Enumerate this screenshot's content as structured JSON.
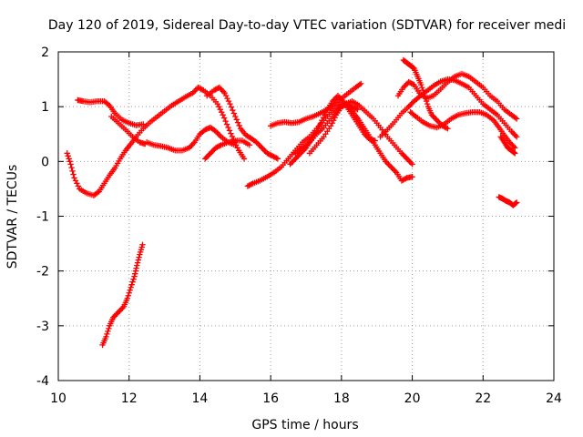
{
  "chart_data": {
    "type": "scatter",
    "title": "Day 120 of 2019, Sidereal Day-to-day VTEC variation (SDTVAR) for receiver medi",
    "xlabel": "GPS time / hours",
    "ylabel": "SDTVAR / TECUs",
    "xlim": [
      10,
      24
    ],
    "ylim": [
      -4,
      2
    ],
    "xticks": [
      10,
      12,
      14,
      16,
      18,
      20,
      22,
      24
    ],
    "yticks": [
      -4,
      -3,
      -2,
      -1,
      0,
      1,
      2
    ],
    "grid": true,
    "marker": "plus",
    "color": "#ff0000",
    "series": [
      {
        "name": "arc-1",
        "points": [
          [
            10.25,
            0.15
          ],
          [
            10.35,
            -0.05
          ],
          [
            10.45,
            -0.3
          ],
          [
            10.6,
            -0.5
          ],
          [
            10.8,
            -0.58
          ],
          [
            11.0,
            -0.62
          ],
          [
            11.15,
            -0.55
          ],
          [
            11.3,
            -0.4
          ],
          [
            11.45,
            -0.25
          ],
          [
            11.6,
            -0.12
          ],
          [
            11.75,
            0.05
          ],
          [
            11.9,
            0.2
          ],
          [
            12.05,
            0.32
          ],
          [
            12.2,
            0.45
          ],
          [
            12.4,
            0.6
          ],
          [
            12.6,
            0.72
          ],
          [
            12.8,
            0.82
          ],
          [
            13.0,
            0.92
          ],
          [
            13.2,
            1.02
          ],
          [
            13.4,
            1.1
          ],
          [
            13.6,
            1.18
          ],
          [
            13.8,
            1.25
          ],
          [
            13.95,
            1.35
          ],
          [
            14.1,
            1.3
          ],
          [
            14.3,
            1.2
          ],
          [
            14.5,
            1.05
          ],
          [
            14.65,
            0.85
          ],
          [
            14.8,
            0.62
          ],
          [
            14.95,
            0.4
          ],
          [
            15.1,
            0.2
          ],
          [
            15.25,
            0.05
          ]
        ]
      },
      {
        "name": "arc-2",
        "points": [
          [
            10.55,
            1.12
          ],
          [
            10.7,
            1.1
          ],
          [
            10.9,
            1.08
          ],
          [
            11.1,
            1.1
          ],
          [
            11.3,
            1.1
          ],
          [
            11.45,
            1.02
          ],
          [
            11.6,
            0.88
          ],
          [
            11.8,
            0.76
          ],
          [
            12.0,
            0.7
          ],
          [
            12.2,
            0.66
          ],
          [
            12.4,
            0.68
          ]
        ]
      },
      {
        "name": "arc-3",
        "points": [
          [
            11.5,
            0.82
          ],
          [
            11.7,
            0.7
          ],
          [
            11.9,
            0.58
          ],
          [
            12.1,
            0.45
          ],
          [
            12.3,
            0.35
          ],
          [
            12.45,
            0.32
          ]
        ]
      },
      {
        "name": "arc-4",
        "points": [
          [
            11.25,
            -3.35
          ],
          [
            11.35,
            -3.2
          ],
          [
            11.45,
            -3.0
          ],
          [
            11.55,
            -2.85
          ],
          [
            11.7,
            -2.75
          ],
          [
            11.85,
            -2.65
          ],
          [
            11.95,
            -2.5
          ],
          [
            12.05,
            -2.3
          ],
          [
            12.15,
            -2.1
          ],
          [
            12.22,
            -1.9
          ],
          [
            12.3,
            -1.7
          ],
          [
            12.38,
            -1.52
          ]
        ]
      },
      {
        "name": "arc-5",
        "points": [
          [
            12.5,
            0.35
          ],
          [
            12.7,
            0.3
          ],
          [
            12.9,
            0.28
          ],
          [
            13.1,
            0.25
          ],
          [
            13.3,
            0.2
          ],
          [
            13.5,
            0.2
          ],
          [
            13.7,
            0.25
          ],
          [
            13.85,
            0.35
          ],
          [
            14.0,
            0.5
          ],
          [
            14.15,
            0.58
          ],
          [
            14.3,
            0.62
          ],
          [
            14.45,
            0.55
          ],
          [
            14.6,
            0.45
          ],
          [
            14.8,
            0.35
          ],
          [
            15.0,
            0.3
          ]
        ]
      },
      {
        "name": "arc-6",
        "points": [
          [
            14.2,
            1.2
          ],
          [
            14.4,
            1.3
          ],
          [
            14.55,
            1.35
          ],
          [
            14.7,
            1.25
          ],
          [
            14.85,
            1.05
          ],
          [
            15.0,
            0.82
          ],
          [
            15.15,
            0.6
          ],
          [
            15.3,
            0.48
          ],
          [
            15.45,
            0.42
          ],
          [
            15.6,
            0.35
          ],
          [
            15.75,
            0.25
          ],
          [
            15.9,
            0.15
          ],
          [
            16.05,
            0.1
          ],
          [
            16.2,
            0.05
          ]
        ]
      },
      {
        "name": "arc-7",
        "points": [
          [
            14.15,
            0.05
          ],
          [
            14.3,
            0.15
          ],
          [
            14.45,
            0.25
          ],
          [
            14.6,
            0.3
          ],
          [
            14.8,
            0.35
          ],
          [
            15.0,
            0.38
          ],
          [
            15.2,
            0.38
          ],
          [
            15.4,
            0.3
          ]
        ]
      },
      {
        "name": "arc-8",
        "points": [
          [
            15.35,
            -0.45
          ],
          [
            15.5,
            -0.4
          ],
          [
            15.7,
            -0.35
          ],
          [
            15.9,
            -0.28
          ],
          [
            16.1,
            -0.2
          ],
          [
            16.3,
            -0.1
          ],
          [
            16.5,
            0.05
          ],
          [
            16.7,
            0.2
          ],
          [
            16.9,
            0.35
          ],
          [
            17.1,
            0.45
          ],
          [
            17.3,
            0.6
          ],
          [
            17.5,
            0.75
          ],
          [
            17.7,
            0.9
          ],
          [
            17.9,
            1.02
          ],
          [
            18.05,
            1.05
          ],
          [
            18.2,
            1.0
          ],
          [
            18.35,
            0.88
          ],
          [
            18.5,
            0.75
          ],
          [
            18.65,
            0.6
          ],
          [
            18.8,
            0.45
          ],
          [
            18.95,
            0.3
          ],
          [
            19.1,
            0.15
          ],
          [
            19.25,
            0.0
          ],
          [
            19.4,
            -0.1
          ],
          [
            19.55,
            -0.2
          ],
          [
            19.7,
            -0.35
          ],
          [
            19.85,
            -0.3
          ],
          [
            20.0,
            -0.28
          ]
        ]
      },
      {
        "name": "arc-9",
        "points": [
          [
            16.0,
            0.65
          ],
          [
            16.2,
            0.7
          ],
          [
            16.4,
            0.72
          ],
          [
            16.6,
            0.7
          ],
          [
            16.8,
            0.72
          ],
          [
            17.0,
            0.78
          ],
          [
            17.2,
            0.82
          ],
          [
            17.4,
            0.88
          ],
          [
            17.6,
            0.95
          ],
          [
            17.8,
            1.05
          ],
          [
            18.0,
            1.15
          ],
          [
            18.2,
            1.25
          ],
          [
            18.4,
            1.35
          ],
          [
            18.55,
            1.42
          ]
        ]
      },
      {
        "name": "arc-10",
        "points": [
          [
            16.55,
            -0.05
          ],
          [
            16.7,
            0.05
          ],
          [
            16.85,
            0.15
          ],
          [
            17.0,
            0.25
          ],
          [
            17.15,
            0.4
          ],
          [
            17.3,
            0.55
          ],
          [
            17.45,
            0.75
          ],
          [
            17.6,
            0.95
          ],
          [
            17.75,
            1.1
          ],
          [
            17.9,
            1.2
          ],
          [
            18.05,
            1.1
          ],
          [
            18.2,
            0.95
          ],
          [
            18.35,
            0.8
          ],
          [
            18.5,
            0.65
          ],
          [
            18.65,
            0.5
          ],
          [
            18.8,
            0.4
          ],
          [
            18.95,
            0.38
          ]
        ]
      },
      {
        "name": "arc-11",
        "points": [
          [
            16.7,
            0.15
          ],
          [
            16.9,
            0.25
          ],
          [
            17.1,
            0.35
          ],
          [
            17.3,
            0.5
          ],
          [
            17.5,
            0.62
          ],
          [
            17.7,
            0.78
          ],
          [
            17.9,
            0.95
          ],
          [
            18.1,
            1.05
          ],
          [
            18.3,
            1.1
          ],
          [
            18.5,
            1.02
          ],
          [
            18.7,
            0.9
          ],
          [
            18.9,
            0.78
          ],
          [
            19.1,
            0.62
          ],
          [
            19.3,
            0.45
          ],
          [
            19.5,
            0.3
          ],
          [
            19.7,
            0.15
          ],
          [
            19.85,
            0.05
          ],
          [
            20.0,
            -0.05
          ]
        ]
      },
      {
        "name": "arc-12",
        "points": [
          [
            17.1,
            0.15
          ],
          [
            17.3,
            0.3
          ],
          [
            17.5,
            0.45
          ],
          [
            17.7,
            0.65
          ],
          [
            17.85,
            0.85
          ],
          [
            18.0,
            1.0
          ],
          [
            18.15,
            1.05
          ],
          [
            18.3,
            1.0
          ],
          [
            18.45,
            0.95
          ]
        ]
      },
      {
        "name": "arc-13",
        "points": [
          [
            19.1,
            0.45
          ],
          [
            19.3,
            0.58
          ],
          [
            19.5,
            0.72
          ],
          [
            19.7,
            0.88
          ],
          [
            19.9,
            1.0
          ],
          [
            20.05,
            1.1
          ],
          [
            20.2,
            1.18
          ],
          [
            20.4,
            1.28
          ],
          [
            20.6,
            1.38
          ],
          [
            20.8,
            1.46
          ],
          [
            21.0,
            1.5
          ],
          [
            21.2,
            1.48
          ],
          [
            21.4,
            1.42
          ],
          [
            21.6,
            1.35
          ],
          [
            21.8,
            1.2
          ],
          [
            22.0,
            1.05
          ],
          [
            22.2,
            0.95
          ],
          [
            22.4,
            0.85
          ],
          [
            22.6,
            0.7
          ],
          [
            22.8,
            0.55
          ],
          [
            22.95,
            0.45
          ]
        ]
      },
      {
        "name": "arc-14",
        "points": [
          [
            19.6,
            1.2
          ],
          [
            19.75,
            1.35
          ],
          [
            19.9,
            1.45
          ],
          [
            20.05,
            1.4
          ],
          [
            20.2,
            1.25
          ],
          [
            20.4,
            1.15
          ],
          [
            20.6,
            1.2
          ],
          [
            20.8,
            1.32
          ],
          [
            21.0,
            1.45
          ],
          [
            21.2,
            1.55
          ],
          [
            21.4,
            1.6
          ],
          [
            21.6,
            1.55
          ],
          [
            21.8,
            1.45
          ],
          [
            22.0,
            1.35
          ],
          [
            22.2,
            1.2
          ],
          [
            22.4,
            1.1
          ],
          [
            22.6,
            0.95
          ],
          [
            22.8,
            0.85
          ],
          [
            22.95,
            0.78
          ]
        ]
      },
      {
        "name": "arc-15",
        "points": [
          [
            19.75,
            1.85
          ],
          [
            19.85,
            1.8
          ],
          [
            19.95,
            1.75
          ],
          [
            20.05,
            1.7
          ],
          [
            20.15,
            1.55
          ],
          [
            20.25,
            1.4
          ],
          [
            20.35,
            1.2
          ],
          [
            20.45,
            1.0
          ],
          [
            20.55,
            0.85
          ],
          [
            20.7,
            0.75
          ],
          [
            20.85,
            0.65
          ],
          [
            21.0,
            0.6
          ]
        ]
      },
      {
        "name": "arc-16",
        "points": [
          [
            19.95,
            0.9
          ],
          [
            20.1,
            0.82
          ],
          [
            20.3,
            0.72
          ],
          [
            20.5,
            0.65
          ],
          [
            20.7,
            0.62
          ],
          [
            20.9,
            0.68
          ],
          [
            21.1,
            0.78
          ],
          [
            21.3,
            0.85
          ],
          [
            21.5,
            0.88
          ],
          [
            21.7,
            0.9
          ],
          [
            21.9,
            0.9
          ],
          [
            22.1,
            0.85
          ],
          [
            22.3,
            0.75
          ],
          [
            22.45,
            0.62
          ],
          [
            22.6,
            0.48
          ],
          [
            22.75,
            0.35
          ],
          [
            22.9,
            0.25
          ]
        ]
      },
      {
        "name": "arc-17",
        "points": [
          [
            22.5,
            0.45
          ],
          [
            22.6,
            0.35
          ],
          [
            22.7,
            0.25
          ],
          [
            22.8,
            0.2
          ],
          [
            22.9,
            0.15
          ]
        ]
      },
      {
        "name": "arc-18",
        "points": [
          [
            22.45,
            -0.65
          ],
          [
            22.55,
            -0.68
          ],
          [
            22.65,
            -0.72
          ],
          [
            22.75,
            -0.75
          ],
          [
            22.85,
            -0.8
          ],
          [
            22.95,
            -0.75
          ]
        ]
      }
    ]
  }
}
